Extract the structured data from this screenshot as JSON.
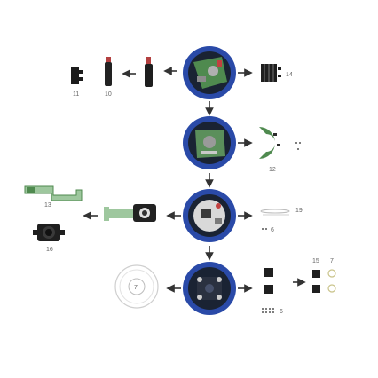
{
  "diagram": {
    "part_labels": {
      "p11": "11",
      "p10": "10",
      "p14": "14",
      "p12": "12",
      "p13": "13",
      "p16": "16",
      "p19": "19",
      "p6a": "6",
      "p15": "15",
      "p7": "7",
      "p6b": "6"
    },
    "colors": {
      "housing_ring": "#2a4aa8",
      "housing_dark": "#1a2333",
      "pcb_green": "#4f8a4f",
      "metal": "#8c8c8c",
      "arrow": "#333333"
    }
  }
}
